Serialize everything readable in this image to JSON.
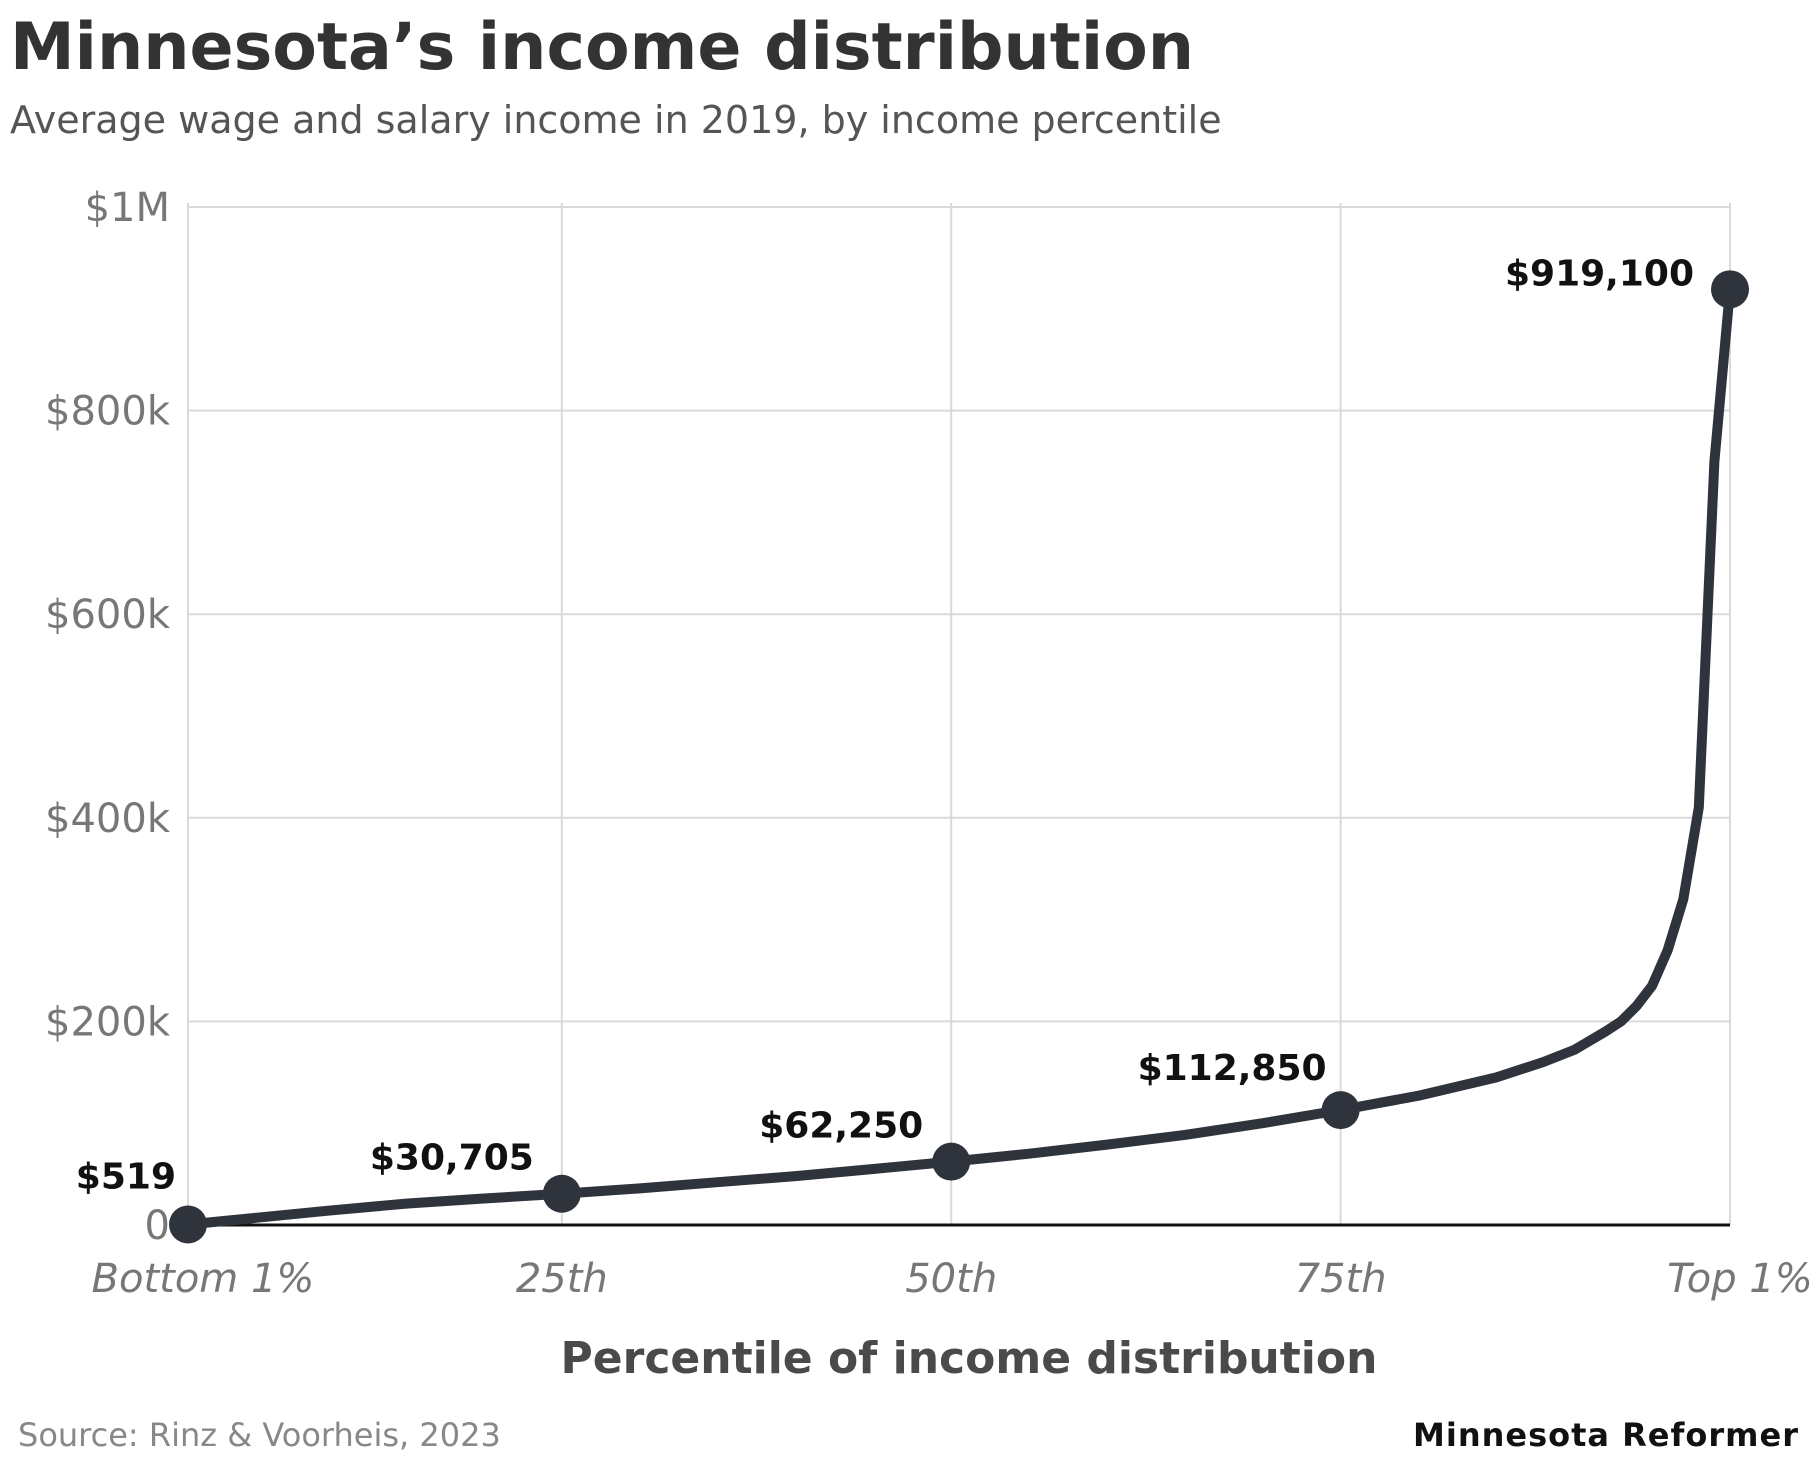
{
  "header": {
    "title": "Minnesota’s income distribution",
    "subtitle": "Average wage and salary income in 2019, by income percentile"
  },
  "footer": {
    "source": "Source: Rinz & Voorheis, 2023",
    "credit": "Minnesota Reformer"
  },
  "colors": {
    "line": "#2f343c",
    "grid": "#d9d9d9",
    "axis": "#111111"
  },
  "chart_data": {
    "type": "line",
    "title": "Minnesota’s income distribution",
    "subtitle": "Average wage and salary income in 2019, by income percentile",
    "xlabel": "Percentile of income distribution",
    "ylabel": "",
    "xlim": [
      1,
      100
    ],
    "ylim": [
      0,
      1000000
    ],
    "grid": true,
    "legend": "none",
    "x_ticks": [
      {
        "value": 1,
        "label": "Bottom 1%"
      },
      {
        "value": 25,
        "label": "25th"
      },
      {
        "value": 50,
        "label": "50th"
      },
      {
        "value": 75,
        "label": "75th"
      },
      {
        "value": 100,
        "label": "Top 1%"
      }
    ],
    "y_ticks": [
      {
        "value": 0,
        "label": "0"
      },
      {
        "value": 200000,
        "label": "$200k"
      },
      {
        "value": 400000,
        "label": "$400k"
      },
      {
        "value": 600000,
        "label": "$600k"
      },
      {
        "value": 800000,
        "label": "$800k"
      },
      {
        "value": 1000000,
        "label": "$1M"
      }
    ],
    "series": [
      {
        "x": [
          1,
          5,
          10,
          15,
          20,
          25,
          30,
          35,
          40,
          45,
          50,
          55,
          60,
          65,
          70,
          75,
          80,
          85,
          88,
          90,
          92,
          93,
          94,
          95,
          96,
          97,
          98,
          99,
          100
        ],
        "y": [
          519,
          6500,
          14000,
          21000,
          26000,
          30705,
          36000,
          42000,
          48000,
          55000,
          62250,
          70000,
          79000,
          88500,
          100000,
          112850,
          127000,
          145000,
          160000,
          172000,
          190000,
          200000,
          215000,
          235000,
          270000,
          320000,
          410000,
          750000,
          919100
        ]
      }
    ],
    "highlighted_points": [
      {
        "x": 1,
        "y": 519,
        "label": "$519"
      },
      {
        "x": 25,
        "y": 30705,
        "label": "$30,705"
      },
      {
        "x": 50,
        "y": 62250,
        "label": "$62,250"
      },
      {
        "x": 75,
        "y": 112850,
        "label": "$112,850"
      },
      {
        "x": 100,
        "y": 919100,
        "label": "$919,100"
      }
    ]
  }
}
